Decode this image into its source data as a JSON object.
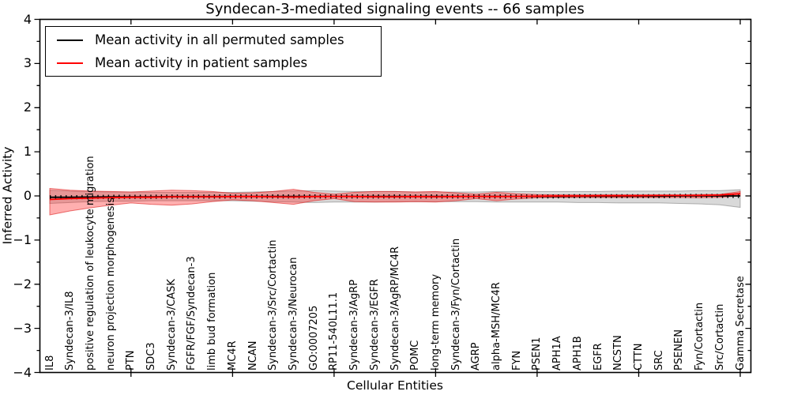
{
  "chart_data": {
    "type": "line",
    "title": "Syndecan-3-mediated signaling events -- 66 samples",
    "xlabel": "Cellular Entities",
    "ylabel": "Inferred Activity",
    "ylim": [
      -4,
      4
    ],
    "yticks": [
      -4,
      -3,
      -2,
      -1,
      0,
      1,
      2,
      3,
      4
    ],
    "y_minor_tick_step": 0.5,
    "grid": false,
    "legend_position": "upper left",
    "frame_color": "#000000",
    "categories": [
      "IL8",
      "Syndecan-3/IL8",
      "positive regulation of leukocyte migration",
      "neuron projection morphogenesis",
      "PTN",
      "SDC3",
      "Syndecan-3/CASK",
      "FGFR/FGF/Syndecan-3",
      "limb bud formation",
      "MC4R",
      "NCAN",
      "Syndecan-3/Src/Cortactin",
      "Syndecan-3/Neurocan",
      "GO:0007205",
      "RP11-540L11.1",
      "Syndecan-3/AgRP",
      "Syndecan-3/EGFR",
      "Syndecan-3/AgRP/MC4R",
      "POMC",
      "long-term memory",
      "Syndecan-3/Fyn/Cortactin",
      "AGRP",
      "alpha-MSH/MC4R",
      "FYN",
      "PSEN1",
      "APH1A",
      "APH1B",
      "EGFR",
      "NCSTN",
      "CTTN",
      "SRC",
      "PSENEN",
      "Fyn/Cortactin",
      "Src/Cortactin",
      "Gamma Secretase"
    ],
    "series": [
      {
        "name": "Mean activity in all permuted samples",
        "color": "#000000",
        "marker": "plus",
        "values": [
          -0.03,
          -0.03,
          -0.025,
          -0.02,
          -0.02,
          -0.02,
          -0.015,
          -0.015,
          -0.015,
          -0.01,
          -0.01,
          -0.01,
          -0.01,
          -0.01,
          -0.01,
          -0.01,
          -0.01,
          -0.01,
          -0.01,
          -0.01,
          -0.01,
          -0.01,
          -0.01,
          -0.01,
          -0.01,
          -0.01,
          -0.005,
          -0.005,
          -0.005,
          -0.005,
          -0.005,
          0,
          0,
          0,
          0
        ]
      },
      {
        "name": "Mean activity in patient samples",
        "color": "#ff0000",
        "marker": "none",
        "values": [
          -0.08,
          -0.06,
          -0.05,
          -0.04,
          -0.03,
          -0.03,
          -0.02,
          -0.02,
          -0.02,
          -0.015,
          -0.015,
          -0.02,
          -0.025,
          -0.015,
          -0.01,
          -0.015,
          -0.02,
          -0.02,
          -0.015,
          -0.02,
          -0.015,
          -0.01,
          -0.015,
          -0.01,
          -0.005,
          0,
          0,
          0.005,
          0.005,
          0.005,
          0.01,
          0.01,
          0.01,
          0.02,
          0.05
        ]
      }
    ],
    "bands": [
      {
        "name": "permuted samples range",
        "fill": "rgba(128,128,128,0.30)",
        "edge": "rgba(96,96,96,0.45)",
        "upper": [
          0.13,
          0.11,
          0.1,
          0.09,
          0.09,
          0.08,
          0.08,
          0.08,
          0.08,
          0.08,
          0.09,
          0.1,
          0.11,
          0.12,
          0.11,
          0.1,
          0.1,
          0.1,
          0.09,
          0.09,
          0.09,
          0.09,
          0.1,
          0.1,
          0.1,
          0.1,
          0.1,
          0.1,
          0.11,
          0.11,
          0.11,
          0.11,
          0.12,
          0.12,
          0.14
        ],
        "lower": [
          -0.17,
          -0.15,
          -0.13,
          -0.12,
          -0.12,
          -0.11,
          -0.11,
          -0.11,
          -0.11,
          -0.11,
          -0.12,
          -0.13,
          -0.14,
          -0.15,
          -0.14,
          -0.14,
          -0.14,
          -0.13,
          -0.13,
          -0.13,
          -0.13,
          -0.13,
          -0.14,
          -0.14,
          -0.14,
          -0.14,
          -0.15,
          -0.15,
          -0.16,
          -0.16,
          -0.16,
          -0.17,
          -0.18,
          -0.2,
          -0.26
        ]
      },
      {
        "name": "patient samples range",
        "fill": "rgba(255,45,45,0.38)",
        "edge": "rgba(220,30,30,0.60)",
        "upper": [
          0.17,
          0.13,
          0.11,
          0.1,
          0.09,
          0.11,
          0.13,
          0.12,
          0.1,
          0.06,
          0.07,
          0.1,
          0.15,
          0.08,
          0.04,
          0.08,
          0.1,
          0.1,
          0.09,
          0.1,
          0.07,
          0.04,
          0.08,
          0.05,
          0.03,
          0.025,
          0.025,
          0.025,
          0.025,
          0.025,
          0.025,
          0.025,
          0.03,
          0.035,
          0.1
        ],
        "lower": [
          -0.43,
          -0.34,
          -0.27,
          -0.21,
          -0.16,
          -0.19,
          -0.21,
          -0.18,
          -0.13,
          -0.09,
          -0.11,
          -0.15,
          -0.19,
          -0.11,
          -0.06,
          -0.13,
          -0.14,
          -0.14,
          -0.13,
          -0.14,
          -0.11,
          -0.06,
          -0.11,
          -0.07,
          -0.04,
          -0.035,
          -0.035,
          -0.035,
          -0.035,
          -0.035,
          -0.035,
          -0.035,
          -0.04,
          -0.03,
          0.0
        ]
      }
    ]
  }
}
